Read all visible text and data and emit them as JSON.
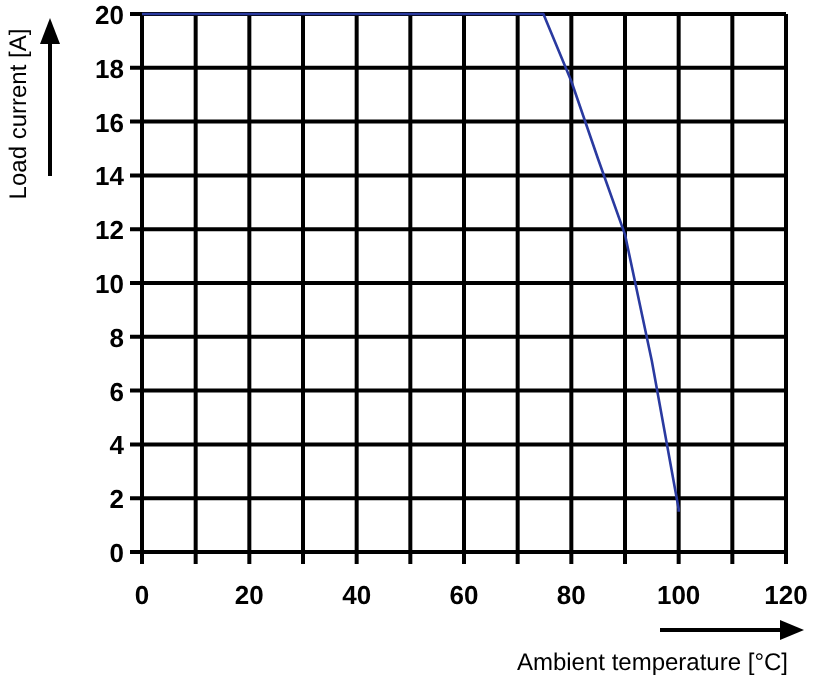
{
  "chart_data": {
    "type": "line",
    "xlabel": "Ambient temperature [°C]",
    "ylabel": "Load current [A]",
    "series": [
      {
        "color": "#2a3aa0",
        "x": [
          0,
          74.8,
          80,
          85,
          90,
          95,
          100,
          100
        ],
        "values": [
          20,
          20,
          17.5,
          14.6,
          11.8,
          7.1,
          1.6,
          1.5
        ]
      }
    ],
    "xlim": [
      0,
      120
    ],
    "ylim": [
      0,
      20
    ],
    "xticks": [
      0,
      {
        "value": 10,
        "label": null
      },
      20,
      {
        "value": 30,
        "label": null
      },
      40,
      {
        "value": 50,
        "label": null
      },
      60,
      {
        "value": 70,
        "label": null
      },
      80,
      {
        "value": 90,
        "label": null
      },
      100,
      {
        "value": 110,
        "label": null
      },
      120
    ],
    "yticks": [
      0,
      2,
      4,
      6,
      8,
      10,
      12,
      14,
      16,
      18,
      20
    ],
    "grid": true,
    "marker": "none",
    "line_style": "solid"
  }
}
